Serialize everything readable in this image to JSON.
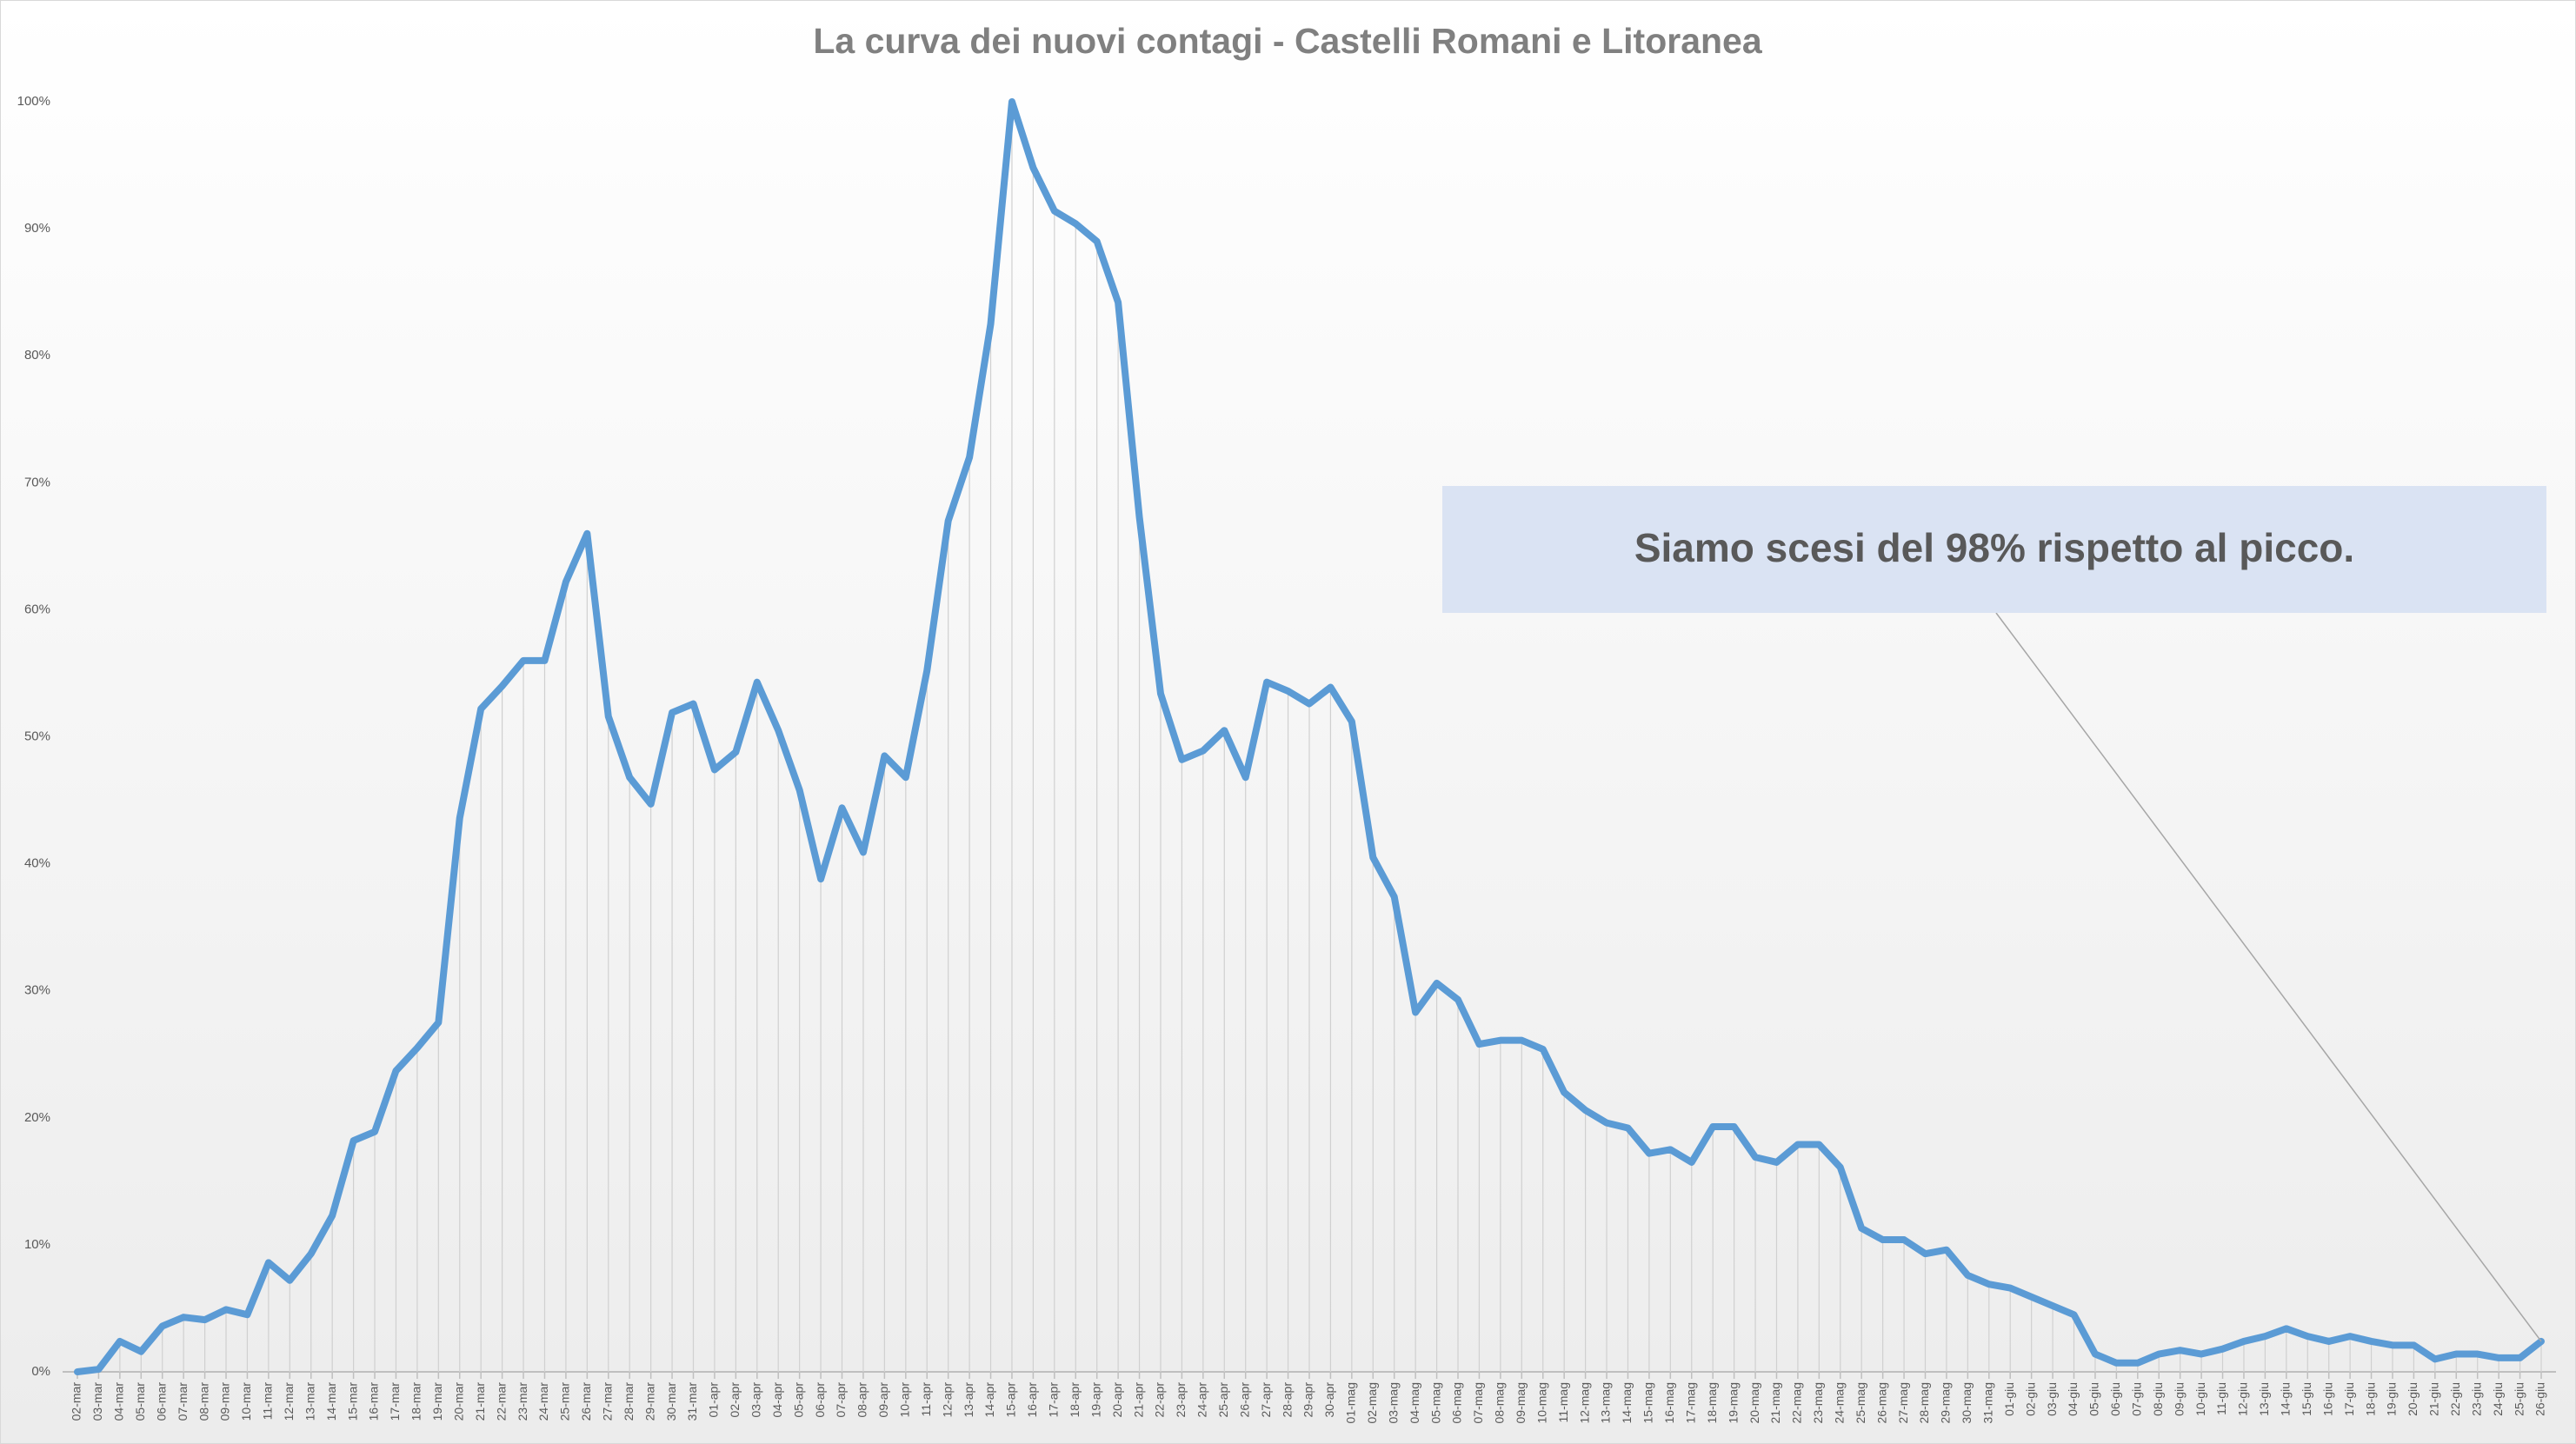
{
  "chart_data": {
    "type": "line",
    "title": "La curva dei nuovi contagi - Castelli Romani e Litoranea",
    "annotation": "Siamo scesi del 98% rispetto al picco.",
    "categories": [
      "02-mar",
      "03-mar",
      "04-mar",
      "05-mar",
      "06-mar",
      "07-mar",
      "08-mar",
      "09-mar",
      "10-mar",
      "11-mar",
      "12-mar",
      "13-mar",
      "14-mar",
      "15-mar",
      "16-mar",
      "17-mar",
      "18-mar",
      "19-mar",
      "20-mar",
      "21-mar",
      "22-mar",
      "23-mar",
      "24-mar",
      "25-mar",
      "26-mar",
      "27-mar",
      "28-mar",
      "29-mar",
      "30-mar",
      "31-mar",
      "01-apr",
      "02-apr",
      "03-apr",
      "04-apr",
      "05-apr",
      "06-apr",
      "07-apr",
      "08-apr",
      "09-apr",
      "10-apr",
      "11-apr",
      "12-apr",
      "13-apr",
      "14-apr",
      "15-apr",
      "16-apr",
      "17-apr",
      "18-apr",
      "19-apr",
      "20-apr",
      "21-apr",
      "22-apr",
      "23-apr",
      "24-apr",
      "25-apr",
      "26-apr",
      "27-apr",
      "28-apr",
      "29-apr",
      "30-apr",
      "01-mag",
      "02-mag",
      "03-mag",
      "04-mag",
      "05-mag",
      "06-mag",
      "07-mag",
      "08-mag",
      "09-mag",
      "10-mag",
      "11-mag",
      "12-mag",
      "13-mag",
      "14-mag",
      "15-mag",
      "16-mag",
      "17-mag",
      "18-mag",
      "19-mag",
      "20-mag",
      "21-mag",
      "22-mag",
      "23-mag",
      "24-mag",
      "25-mag",
      "26-mag",
      "27-mag",
      "28-mag",
      "29-mag",
      "30-mag",
      "31-mag",
      "01-giu",
      "02-giu",
      "03-giu",
      "04-giu",
      "05-giu",
      "06-giu",
      "07-giu",
      "08-giu",
      "09-giu",
      "10-giu",
      "11-giu",
      "12-giu",
      "13-giu",
      "14-giu",
      "15-giu",
      "16-giu",
      "17-giu",
      "18-giu",
      "19-giu",
      "20-giu",
      "21-giu",
      "22-giu",
      "23-giu",
      "24-giu",
      "25-giu",
      "26-giu"
    ],
    "values": [
      0,
      0.2,
      2.4,
      1.6,
      3.6,
      4.3,
      4.1,
      4.9,
      4.5,
      8.6,
      7.2,
      9.3,
      12.3,
      18.2,
      18.9,
      23.7,
      25.5,
      27.5,
      43.6,
      52.2,
      54,
      56,
      56,
      62.2,
      66,
      51.6,
      46.8,
      44.7,
      51.9,
      52.6,
      47.4,
      48.8,
      54.3,
      50.5,
      45.8,
      38.8,
      44.4,
      40.9,
      48.5,
      46.8,
      55.2,
      67,
      72,
      82.5,
      100,
      94.8,
      91.4,
      90.4,
      89,
      84.2,
      67.3,
      53.4,
      48.2,
      48.9,
      50.5,
      46.8,
      54.3,
      53.6,
      52.6,
      53.9,
      51.2,
      40.5,
      37.4,
      28.3,
      30.6,
      29.3,
      25.8,
      26.1,
      26.1,
      25.4,
      22,
      20.6,
      19.6,
      19.2,
      17.2,
      17.5,
      16.5,
      19.3,
      19.3,
      16.9,
      16.5,
      17.9,
      17.9,
      16.1,
      11.3,
      10.4,
      10.4,
      9.3,
      9.6,
      7.6,
      6.9,
      6.6,
      5.9,
      5.2,
      4.5,
      1.4,
      0.7,
      0.7,
      1.4,
      1.7,
      1.4,
      1.8,
      2.4,
      2.8,
      3.4,
      2.8,
      2.4,
      2.8,
      2.4,
      2.1,
      2.1,
      1.0,
      1.4,
      1.4,
      1.1,
      1.1,
      2.4
    ],
    "color": "#5b9bd5",
    "ylim": [
      0,
      100
    ],
    "yticks": [
      {
        "value": 0,
        "label": "0%"
      },
      {
        "value": 10,
        "label": "10%"
      },
      {
        "value": 20,
        "label": "20%"
      },
      {
        "value": 30,
        "label": "30%"
      },
      {
        "value": 40,
        "label": "40%"
      },
      {
        "value": 50,
        "label": "50%"
      },
      {
        "value": 60,
        "label": "60%"
      },
      {
        "value": 70,
        "label": "70%"
      },
      {
        "value": 80,
        "label": "80%"
      },
      {
        "value": 90,
        "label": "90%"
      },
      {
        "value": 100,
        "label": "100%"
      }
    ],
    "drop_lines": true
  }
}
